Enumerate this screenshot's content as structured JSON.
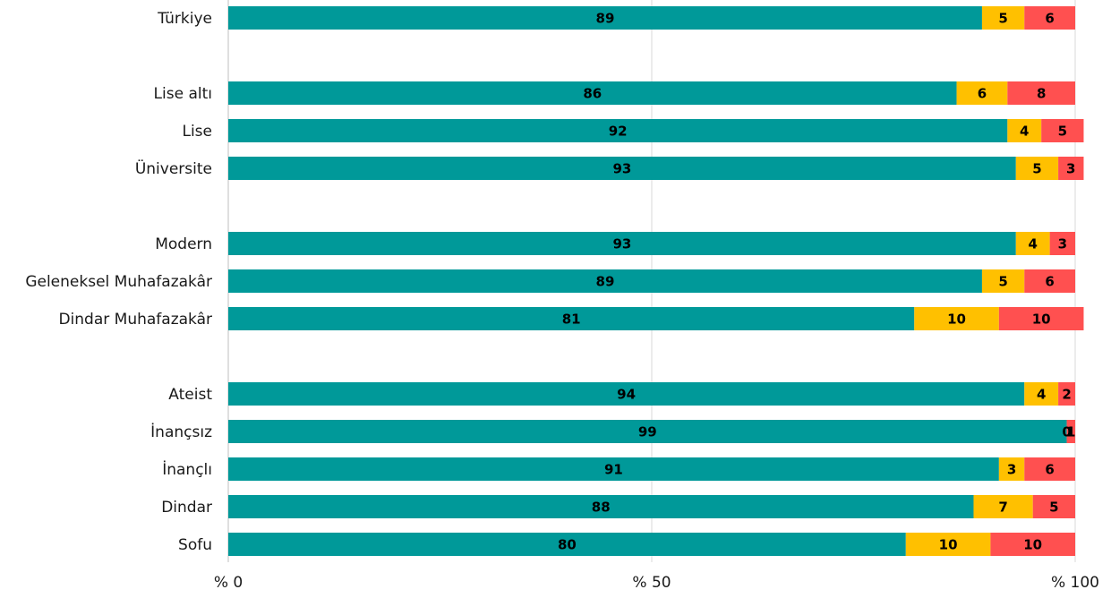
{
  "chart_data": {
    "type": "bar",
    "orientation": "horizontal",
    "stacked": true,
    "categories": [
      "Türkiye",
      "Lise altı",
      "Lise",
      "Üniversite",
      "Modern",
      "Geleneksel Muhafazakâr",
      "Dindar Muhafazakâr",
      "Ateist",
      "İnançsız",
      "İnançlı",
      "Dindar",
      "Sofu"
    ],
    "groups": [
      [
        "Türkiye"
      ],
      [
        "Lise altı",
        "Lise",
        "Üniversite"
      ],
      [
        "Modern",
        "Geleneksel Muhafazakâr",
        "Dindar Muhafazakâr"
      ],
      [
        "Ateist",
        "İnançsız",
        "İnançlı",
        "Dindar",
        "Sofu"
      ]
    ],
    "series": [
      {
        "color": "#009999",
        "values": [
          89,
          86,
          92,
          93,
          93,
          89,
          81,
          94,
          99,
          91,
          88,
          80
        ]
      },
      {
        "color": "#FFC000",
        "values": [
          5,
          6,
          4,
          5,
          4,
          5,
          10,
          4,
          0,
          3,
          7,
          10
        ]
      },
      {
        "color": "#FF5050",
        "values": [
          6,
          8,
          5,
          3,
          3,
          6,
          10,
          2,
          1,
          6,
          5,
          10
        ]
      }
    ],
    "xlim": [
      0,
      100
    ],
    "xticks": [
      0,
      50,
      100
    ],
    "xtick_labels": [
      "% 0",
      "% 50",
      "% 100"
    ],
    "title": "",
    "xlabel": "",
    "ylabel": "",
    "grid": "vertical",
    "legend": "none"
  }
}
